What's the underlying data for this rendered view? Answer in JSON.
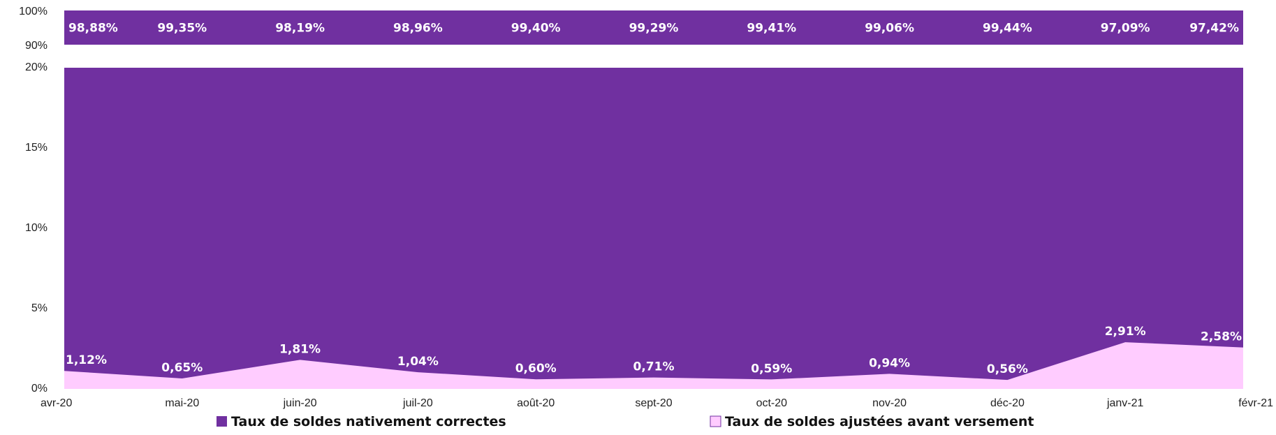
{
  "chart_data": {
    "type": "area",
    "broken_axis": true,
    "categories": [
      "avr-20",
      "mai-20",
      "juin-20",
      "juil-20",
      "août-20",
      "sept-20",
      "oct-20",
      "nov-20",
      "déc-20",
      "janv-21",
      "févr-21"
    ],
    "series": [
      {
        "name": "Taux de soldes nativement correctes",
        "values": [
          98.88,
          99.35,
          98.19,
          98.96,
          99.4,
          99.29,
          99.41,
          99.06,
          99.44,
          97.09,
          97.42
        ],
        "labels": [
          "98,88%",
          "99,35%",
          "98,19%",
          "98,96%",
          "99,40%",
          "99,29%",
          "99,41%",
          "99,06%",
          "99,44%",
          "97,09%",
          "97,42%"
        ],
        "color": "#7030A0"
      },
      {
        "name": "Taux de soldes ajustées avant versement",
        "values": [
          1.12,
          0.65,
          1.81,
          1.04,
          0.6,
          0.71,
          0.59,
          0.94,
          0.56,
          2.91,
          2.58
        ],
        "labels": [
          "1,12%",
          "0,65%",
          "1,81%",
          "1,04%",
          "0,60%",
          "0,71%",
          "0,59%",
          "0,94%",
          "0,56%",
          "2,91%",
          "2,58%"
        ],
        "color": "#FFCCFF"
      }
    ],
    "top_segment": {
      "ylim": [
        90,
        100
      ],
      "tick_labels": [
        "100%",
        "90%"
      ]
    },
    "bottom_segment": {
      "ylim": [
        0,
        20
      ],
      "tick_values": [
        0,
        5,
        10,
        15,
        20
      ],
      "tick_labels": [
        "0%",
        "5%",
        "10%",
        "15%",
        "20%"
      ]
    },
    "legend": {
      "position": "bottom",
      "items": [
        {
          "label": "Taux de soldes nativement correctes",
          "color": "#7030A0"
        },
        {
          "label": "Taux de soldes ajustées avant versement",
          "color": "#FFCCFF"
        }
      ]
    },
    "grid": false
  }
}
